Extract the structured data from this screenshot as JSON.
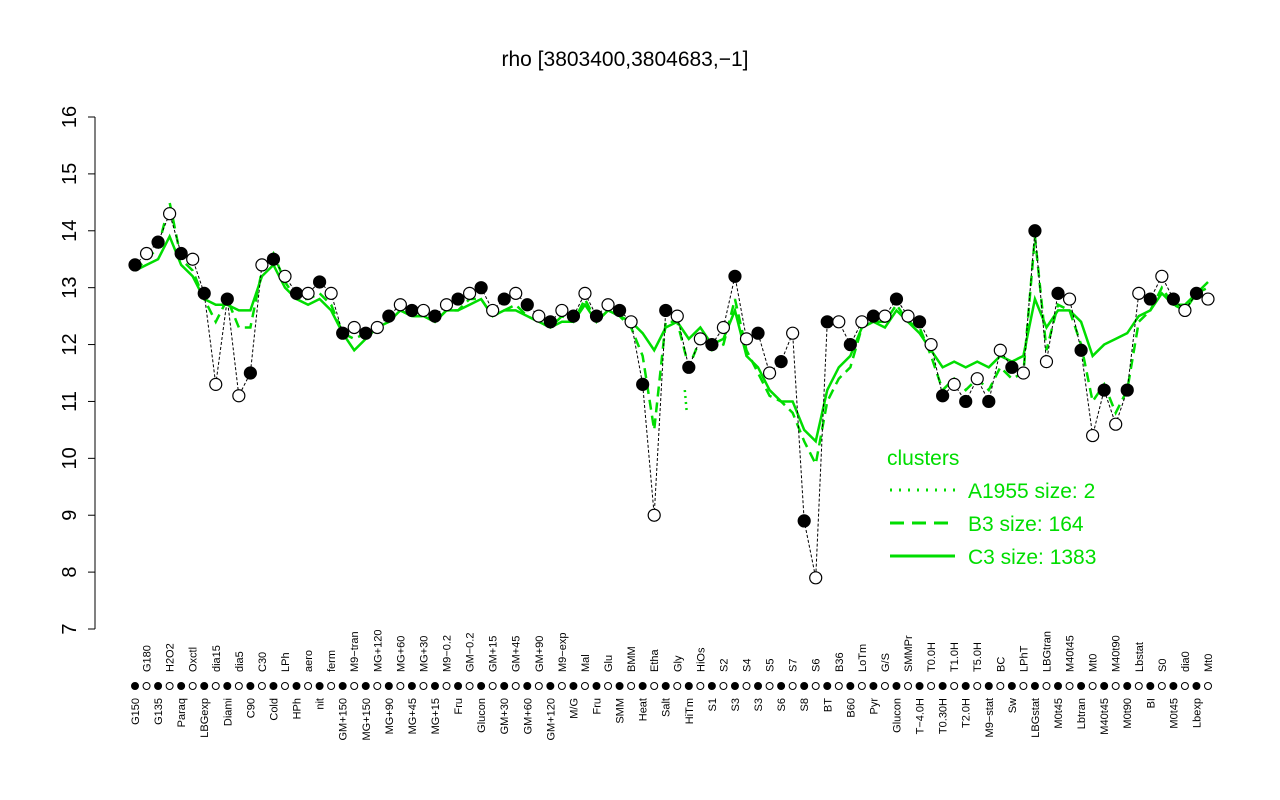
{
  "chart_data": {
    "type": "scatter",
    "title": "rho [3803400,3804683,−1]",
    "xlabel": "",
    "ylabel": "",
    "ylim": [
      7,
      16
    ],
    "yticks": [
      7,
      8,
      9,
      10,
      11,
      12,
      13,
      14,
      15,
      16
    ],
    "grid": false,
    "legend": {
      "title": "clusters",
      "placement": "bottom-right",
      "entries": [
        {
          "label": "A1955 size: 2",
          "style": "dotted"
        },
        {
          "label": "B3 size: 164",
          "style": "dashed"
        },
        {
          "label": "C3 size: 1383",
          "style": "solid"
        }
      ]
    },
    "colors": {
      "points": "#000000",
      "clusters": "#00dd00"
    },
    "categories": [
      "G150",
      "G180",
      "G135",
      "H2O2",
      "Paraq",
      "Oxctl",
      "LBGexp",
      "dia15",
      "Diami",
      "dia5",
      "C90",
      "C30",
      "Cold",
      "LPh",
      "HPh",
      "aero",
      "nit",
      "ferm",
      "GM+150",
      "M9−tran",
      "MG+150",
      "MG+120",
      "MG+90",
      "MG+60",
      "MG+45",
      "MG+30",
      "MG+15",
      "M9−0.2",
      "Fru",
      "GM−0.2",
      "Glucon",
      "GM+15",
      "GM+30",
      "GM+45",
      "GM+60",
      "GM+90",
      "GM+120",
      "M9−exp",
      "M/G",
      "Mal",
      "Fru",
      "Glu",
      "SMM",
      "BMM",
      "Heat",
      "Etha",
      "Salt",
      "Gly",
      "HiTm",
      "HiOs",
      "S1",
      "S2",
      "S3",
      "S4",
      "S3",
      "S5",
      "S6",
      "S7",
      "S8",
      "S6",
      "BT",
      "B36",
      "B60",
      "LoTm",
      "Pyr",
      "G/S",
      "Glucon",
      "SMMPr",
      "T−4.0H",
      "T0.0H",
      "T0.30H",
      "T1.0H",
      "T2.0H",
      "T5.0H",
      "M9−stat",
      "BC",
      "Sw",
      "LPhT",
      "LBGstat",
      "LBGtran",
      "M0t45",
      "M40t45",
      "Lbtran",
      "Mt0",
      "M40t45",
      "M40t90",
      "M0t90",
      "Lbstat",
      "BI",
      "S0",
      "M0t45",
      "dia0",
      "Lbexp",
      "Mt0"
    ],
    "values": [
      13.4,
      13.6,
      13.8,
      14.3,
      13.6,
      13.5,
      12.9,
      11.3,
      12.8,
      11.1,
      11.5,
      13.4,
      13.5,
      13.2,
      12.9,
      12.9,
      13.1,
      12.9,
      12.2,
      12.3,
      12.2,
      12.3,
      12.5,
      12.7,
      12.6,
      12.6,
      12.5,
      12.7,
      12.8,
      12.9,
      13.0,
      12.6,
      12.8,
      12.9,
      12.7,
      12.5,
      12.4,
      12.6,
      12.5,
      12.9,
      12.5,
      12.7,
      12.6,
      12.4,
      11.3,
      9.0,
      12.6,
      12.5,
      11.6,
      12.1,
      12.0,
      12.3,
      13.2,
      12.1,
      12.2,
      11.5,
      11.7,
      12.2,
      8.9,
      7.9,
      12.4,
      12.4,
      12.0,
      12.4,
      12.5,
      12.5,
      12.8,
      12.5,
      12.4,
      12.0,
      11.1,
      11.3,
      11.0,
      11.4,
      11.0,
      11.9,
      11.6,
      11.5,
      14.0,
      11.7,
      12.9,
      12.8,
      11.9,
      10.4,
      11.2,
      10.6,
      11.2,
      12.9,
      12.8,
      13.2,
      12.8,
      12.6,
      12.9,
      12.8
    ],
    "series": [
      {
        "name": "C3 size: 1383",
        "values": [
          13.3,
          13.4,
          13.5,
          13.9,
          13.4,
          13.2,
          12.8,
          12.7,
          12.7,
          12.6,
          12.6,
          13.2,
          13.4,
          13.0,
          12.8,
          12.7,
          12.8,
          12.6,
          12.2,
          11.9,
          12.1,
          12.3,
          12.4,
          12.6,
          12.5,
          12.5,
          12.4,
          12.6,
          12.6,
          12.7,
          12.8,
          12.5,
          12.6,
          12.6,
          12.5,
          12.4,
          12.3,
          12.4,
          12.4,
          12.7,
          12.4,
          12.6,
          12.5,
          12.4,
          12.2,
          11.9,
          12.3,
          12.4,
          12.1,
          12.3,
          12.0,
          12.1,
          12.6,
          11.8,
          11.6,
          11.2,
          11.0,
          11.0,
          10.5,
          10.3,
          11.2,
          11.6,
          11.8,
          12.3,
          12.4,
          12.3,
          12.6,
          12.4,
          12.2,
          11.9,
          11.6,
          11.7,
          11.6,
          11.7,
          11.6,
          11.8,
          11.7,
          11.8,
          12.8,
          12.3,
          12.6,
          12.6,
          12.4,
          11.8,
          12.0,
          12.1,
          12.2,
          12.5,
          12.6,
          12.9,
          12.7,
          12.7,
          12.9,
          13.1
        ]
      },
      {
        "name": "B3 size: 164",
        "values": [
          13.3,
          13.5,
          13.7,
          14.5,
          13.5,
          13.3,
          12.8,
          12.4,
          12.8,
          12.3,
          12.3,
          13.3,
          13.6,
          13.1,
          12.8,
          12.8,
          12.9,
          12.7,
          12.2,
          12.1,
          12.2,
          12.3,
          12.4,
          12.6,
          12.5,
          12.5,
          12.4,
          12.6,
          12.6,
          12.8,
          12.8,
          12.5,
          12.6,
          12.7,
          12.5,
          12.4,
          12.3,
          12.5,
          12.4,
          12.8,
          12.4,
          12.6,
          12.5,
          12.3,
          11.8,
          10.5,
          12.4,
          12.4,
          11.6,
          12.1,
          11.9,
          12.0,
          12.8,
          11.9,
          11.5,
          11.1,
          11.0,
          10.8,
          10.3,
          9.9,
          11.0,
          11.4,
          11.6,
          12.3,
          12.4,
          12.4,
          12.7,
          12.4,
          12.3,
          11.8,
          11.2,
          11.4,
          11.2,
          11.4,
          11.2,
          11.6,
          11.4,
          11.5,
          13.9,
          11.9,
          12.7,
          12.6,
          12.0,
          11.0,
          11.3,
          10.8,
          11.2,
          12.4,
          12.6,
          13.0,
          12.7,
          12.6,
          12.9,
          13.0
        ]
      },
      {
        "name": "A1955 size: 2",
        "values": [
          11.2,
          10.8
        ],
        "at": [
          "HiTm",
          "HiTm"
        ]
      }
    ]
  }
}
